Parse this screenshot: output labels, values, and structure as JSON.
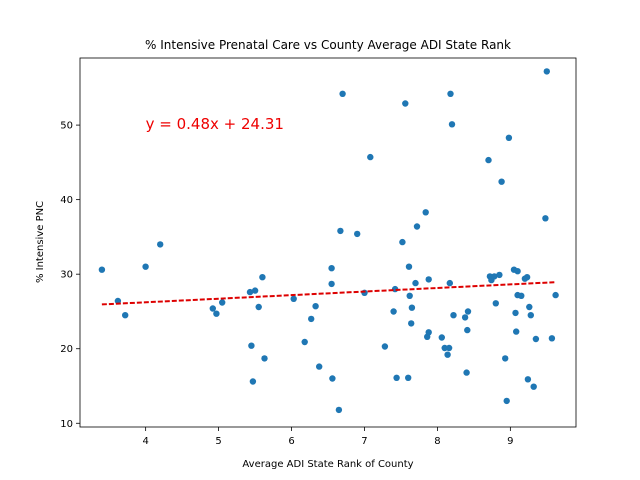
{
  "chart_data": {
    "type": "scatter",
    "title": "% Intensive Prenatal Care vs County Average ADI State Rank",
    "xlabel": "Average ADI State Rank of County",
    "ylabel": "% Intensive PNC",
    "xlim": [
      3.1,
      9.9
    ],
    "ylim": [
      9.5,
      59
    ],
    "xticks": [
      4,
      5,
      6,
      7,
      8,
      9
    ],
    "yticks": [
      10,
      20,
      30,
      40,
      50
    ],
    "grid": false,
    "annotation": "y = 0.48x + 24.31",
    "annotation_pos": {
      "x": 4.0,
      "y": 49.5
    },
    "regression": {
      "slope": 0.48,
      "intercept": 24.31,
      "x_range": [
        3.4,
        9.62
      ],
      "color": "#dd0000"
    },
    "point_color": "#1f77b4",
    "points": [
      [
        3.4,
        30.6
      ],
      [
        3.62,
        26.4
      ],
      [
        3.72,
        24.5
      ],
      [
        4.0,
        31.0
      ],
      [
        4.2,
        34.0
      ],
      [
        4.92,
        25.4
      ],
      [
        4.97,
        24.7
      ],
      [
        5.05,
        26.2
      ],
      [
        5.43,
        27.6
      ],
      [
        5.45,
        20.4
      ],
      [
        5.47,
        15.6
      ],
      [
        5.5,
        27.8
      ],
      [
        5.55,
        25.6
      ],
      [
        5.6,
        29.6
      ],
      [
        5.63,
        18.7
      ],
      [
        6.03,
        26.7
      ],
      [
        6.18,
        20.9
      ],
      [
        6.27,
        24.0
      ],
      [
        6.33,
        25.7
      ],
      [
        6.38,
        17.6
      ],
      [
        6.55,
        30.8
      ],
      [
        6.55,
        28.7
      ],
      [
        6.56,
        16.0
      ],
      [
        6.65,
        11.8
      ],
      [
        6.67,
        35.8
      ],
      [
        6.7,
        54.2
      ],
      [
        6.9,
        35.4
      ],
      [
        7.0,
        27.5
      ],
      [
        7.08,
        45.7
      ],
      [
        7.28,
        20.3
      ],
      [
        7.4,
        25.0
      ],
      [
        7.42,
        28.0
      ],
      [
        7.44,
        16.1
      ],
      [
        7.52,
        34.3
      ],
      [
        7.56,
        52.9
      ],
      [
        7.6,
        16.1
      ],
      [
        7.61,
        31.0
      ],
      [
        7.62,
        27.1
      ],
      [
        7.64,
        23.4
      ],
      [
        7.65,
        25.5
      ],
      [
        7.7,
        28.8
      ],
      [
        7.72,
        36.4
      ],
      [
        7.84,
        38.3
      ],
      [
        7.86,
        21.6
      ],
      [
        7.88,
        22.2
      ],
      [
        7.88,
        29.3
      ],
      [
        8.06,
        21.5
      ],
      [
        8.1,
        20.1
      ],
      [
        8.14,
        19.2
      ],
      [
        8.16,
        20.1
      ],
      [
        8.17,
        28.8
      ],
      [
        8.18,
        54.2
      ],
      [
        8.2,
        50.1
      ],
      [
        8.22,
        24.5
      ],
      [
        8.38,
        24.2
      ],
      [
        8.4,
        16.8
      ],
      [
        8.41,
        22.5
      ],
      [
        8.42,
        25.0
      ],
      [
        8.7,
        45.3
      ],
      [
        8.72,
        29.7
      ],
      [
        8.74,
        29.2
      ],
      [
        8.78,
        29.7
      ],
      [
        8.8,
        26.1
      ],
      [
        8.85,
        29.9
      ],
      [
        8.88,
        42.4
      ],
      [
        8.93,
        18.7
      ],
      [
        8.95,
        13.0
      ],
      [
        8.98,
        48.3
      ],
      [
        9.05,
        30.6
      ],
      [
        9.07,
        24.8
      ],
      [
        9.08,
        22.3
      ],
      [
        9.1,
        30.4
      ],
      [
        9.1,
        27.2
      ],
      [
        9.15,
        27.1
      ],
      [
        9.2,
        29.4
      ],
      [
        9.23,
        29.6
      ],
      [
        9.24,
        15.9
      ],
      [
        9.26,
        25.6
      ],
      [
        9.28,
        24.5
      ],
      [
        9.32,
        14.9
      ],
      [
        9.35,
        21.3
      ],
      [
        9.48,
        37.5
      ],
      [
        9.5,
        57.2
      ],
      [
        9.57,
        21.4
      ],
      [
        9.62,
        27.2
      ]
    ]
  }
}
